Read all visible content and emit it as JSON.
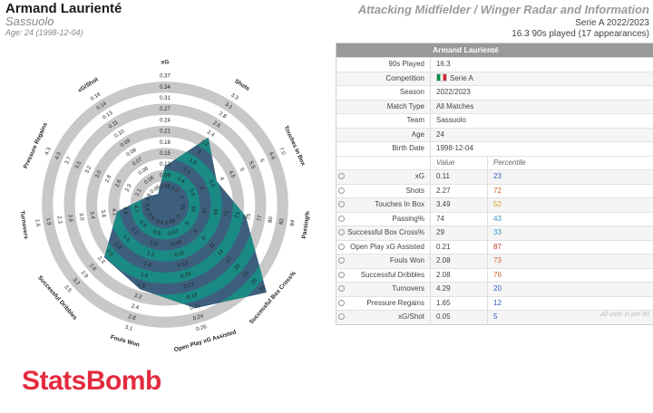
{
  "header": {
    "player_name": "Armand Laurienté",
    "team": "Sassuolo",
    "age_line": "Age: 24 (1998-12-04)",
    "report_title": "Attacking Midfielder / Winger Radar and Information",
    "season_line": "Serie A 2022/2023",
    "minutes_line": "16.3 90s played (17 appearances)"
  },
  "info": {
    "title": "Armand Laurienté",
    "rows": [
      {
        "label": "90s Played",
        "value": "16.3"
      },
      {
        "label": "Competition",
        "value": "Serie A",
        "flag": true
      },
      {
        "label": "Season",
        "value": "2022/2023"
      },
      {
        "label": "Match Type",
        "value": "All Matches"
      },
      {
        "label": "Team",
        "value": "Sassuolo"
      },
      {
        "label": "Age",
        "value": "24"
      },
      {
        "label": "Birth Date",
        "value": "1998-12-04"
      }
    ],
    "col_value": "Value",
    "col_percentile": "Percentile",
    "metrics": [
      {
        "label": "xG",
        "value": "0.11",
        "percentile": "23",
        "color": "#2f5bb7"
      },
      {
        "label": "Shots",
        "value": "2.27",
        "percentile": "72",
        "color": "#d05a2a"
      },
      {
        "label": "Touches In Box",
        "value": "3.49",
        "percentile": "52",
        "color": "#d4a017"
      },
      {
        "label": "Passing%",
        "value": "74",
        "percentile": "43",
        "color": "#3b8fc7"
      },
      {
        "label": "Successful Box Cross%",
        "value": "29",
        "percentile": "33",
        "color": "#3b8fc7"
      },
      {
        "label": "Open Play xG Assisted",
        "value": "0.21",
        "percentile": "87",
        "color": "#c8312b"
      },
      {
        "label": "Fouls Won",
        "value": "2.08",
        "percentile": "73",
        "color": "#d05a2a"
      },
      {
        "label": "Successful Dribbles",
        "value": "2.08",
        "percentile": "76",
        "color": "#d05a2a"
      },
      {
        "label": "Turnovers",
        "value": "4.29",
        "percentile": "20",
        "color": "#2f5bb7"
      },
      {
        "label": "Pressure Regains",
        "value": "1.65",
        "percentile": "12",
        "color": "#2f5bb7"
      },
      {
        "label": "xG/Shot",
        "value": "0.05",
        "percentile": "5",
        "color": "#2f5bb7"
      }
    ],
    "footnote": "All units in per-90"
  },
  "brand": "StatsBomb",
  "chart_data": {
    "type": "radar",
    "axes": [
      {
        "label": "xG",
        "ticks": [
          "0.06",
          "0.09",
          "0.12",
          "0.15",
          "0.18",
          "0.21",
          "0.24",
          "0.27",
          "0.31",
          "0.34",
          "0.37"
        ],
        "min": 0.04,
        "max": 0.37,
        "value": 0.11
      },
      {
        "label": "Shots",
        "ticks": [
          "1.2",
          "1.4",
          "1.6",
          "1.8",
          "2",
          "2.2",
          "2.4",
          "2.6",
          "2.8",
          "3.1",
          "3.3"
        ],
        "min": 1.0,
        "max": 3.3,
        "value": 2.27
      },
      {
        "label": "Touches In Box",
        "ticks": [
          "2",
          "2.5",
          "3",
          "3.5",
          "4",
          "4.5",
          "5",
          "5.5",
          "6",
          "6.6",
          "7.0"
        ],
        "min": 1.5,
        "max": 7.0,
        "value": 3.49
      },
      {
        "label": "Passing%",
        "ticks": [
          "63",
          "65",
          "67",
          "69",
          "71",
          "73",
          "75",
          "77",
          "80",
          "82",
          "84"
        ],
        "min": 61,
        "max": 84,
        "value": 74
      },
      {
        "label": "Successful Box Cross%",
        "ticks": [
          "0",
          "3",
          "6",
          "9",
          "11",
          "14",
          "17",
          "20",
          "23",
          "26",
          "29"
        ],
        "min": -3,
        "max": 29,
        "value": 29
      },
      {
        "label": "Open Play xG Assisted",
        "ticks": [
          "0.05",
          "0.07",
          "0.09",
          "0.11",
          "0.13",
          "0.15",
          "0.17",
          "0.19",
          "0.21",
          "0.24",
          "0.26"
        ],
        "min": 0.03,
        "max": 0.26,
        "value": 0.21
      },
      {
        "label": "Fouls Won",
        "ticks": [
          "0.6",
          "0.8",
          "1.0",
          "1.2",
          "1.4",
          "1.6",
          "1.9",
          "2.2",
          "2.4",
          "2.8",
          "3.1"
        ],
        "min": 0.4,
        "max": 3.1,
        "value": 2.08
      },
      {
        "label": "Successful Dribbles",
        "ticks": [
          "0.6",
          "0.9",
          "1.2",
          "1.5",
          "1.8",
          "2.0",
          "2.3",
          "2.6",
          "2.9",
          "3.2",
          "3.5"
        ],
        "min": 0.3,
        "max": 3.5,
        "value": 2.08
      },
      {
        "label": "Turnovers",
        "ticks": [
          "5.0",
          "4.7",
          "4.4",
          "4.1",
          "3.8",
          "3.4",
          "3.0",
          "2.6",
          "2.3",
          "1.9",
          "1.6"
        ],
        "min": 5.4,
        "max": 1.6,
        "value": 4.29
      },
      {
        "label": "Pressure Regains",
        "ticks": [
          "1.8",
          "2.1",
          "2.3",
          "2.6",
          "2.8",
          "3.0",
          "3.2",
          "3.5",
          "3.7",
          "4.0",
          "4.3"
        ],
        "min": 1.5,
        "max": 4.3,
        "value": 1.65
      },
      {
        "label": "xG/Shot",
        "ticks": [
          "0.06",
          "0.06",
          "0.06",
          "0.07",
          "0.08",
          "0.09",
          "0.10",
          "0.11",
          "0.13",
          "0.14",
          "0.16"
        ],
        "min": 0.05,
        "max": 0.16,
        "value": 0.05
      }
    ],
    "colors": {
      "ring_dark": "#c8c8c8",
      "ring_light": "#ffffff",
      "player_fill": "#3d5f7d",
      "overlap_fill": "#1a8a84",
      "accent": "#e32b3f"
    }
  }
}
